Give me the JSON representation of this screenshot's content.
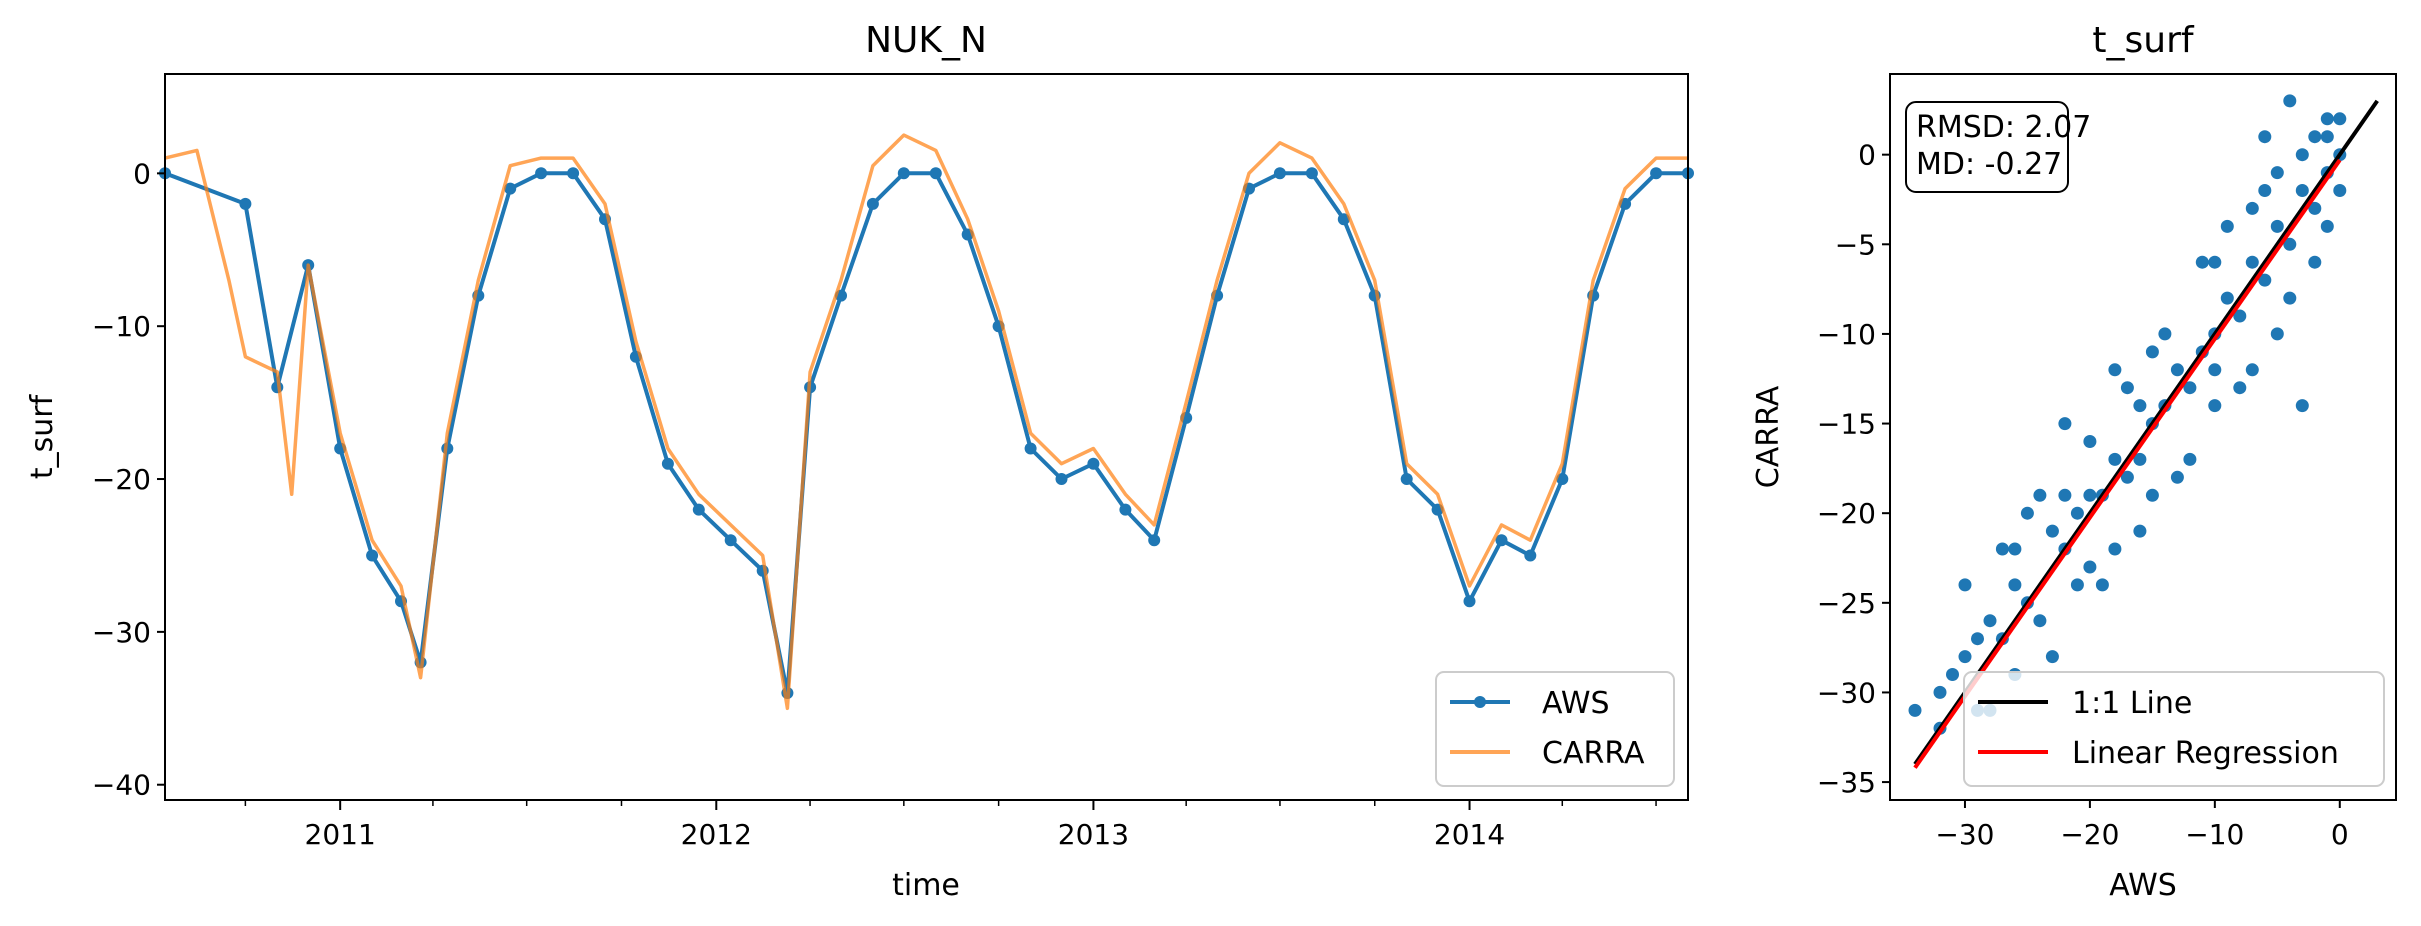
{
  "chart_data": [
    {
      "type": "line",
      "title": "NUK_N",
      "xlabel": "time",
      "ylabel": "t_surf",
      "x_ticks": [
        "2011",
        "2012",
        "2013",
        "2014"
      ],
      "x_range": [
        "2010-07-15",
        "2014-08-01"
      ],
      "ylim": [
        -41,
        6.5
      ],
      "y_ticks": [
        0,
        -10,
        -20,
        -30,
        -40
      ],
      "grid": false,
      "legend_position": "lower right",
      "series": [
        {
          "name": "AWS",
          "color": "#1f77b4",
          "marker": "circle",
          "points": [
            [
              "2010-07-15",
              0
            ],
            [
              "2010-10-01",
              -2
            ],
            [
              "2010-11-01",
              -14
            ],
            [
              "2010-12-01",
              -6
            ],
            [
              "2011-01-01",
              -18
            ],
            [
              "2011-02-01",
              -25
            ],
            [
              "2011-03-01",
              -28
            ],
            [
              "2011-03-20",
              -32
            ],
            [
              "2011-04-15",
              -18
            ],
            [
              "2011-05-15",
              -8
            ],
            [
              "2011-06-15",
              -1
            ],
            [
              "2011-07-15",
              0
            ],
            [
              "2011-08-15",
              0
            ],
            [
              "2011-09-15",
              -3
            ],
            [
              "2011-10-15",
              -12
            ],
            [
              "2011-11-15",
              -19
            ],
            [
              "2011-12-15",
              -22
            ],
            [
              "2012-01-15",
              -24
            ],
            [
              "2012-02-15",
              -26
            ],
            [
              "2012-03-10",
              -34
            ],
            [
              "2012-04-01",
              -14
            ],
            [
              "2012-05-01",
              -8
            ],
            [
              "2012-06-01",
              -2
            ],
            [
              "2012-07-01",
              0
            ],
            [
              "2012-08-01",
              0
            ],
            [
              "2012-09-01",
              -4
            ],
            [
              "2012-10-01",
              -10
            ],
            [
              "2012-11-01",
              -18
            ],
            [
              "2012-12-01",
              -20
            ],
            [
              "2013-01-01",
              -19
            ],
            [
              "2013-02-01",
              -22
            ],
            [
              "2013-03-01",
              -24
            ],
            [
              "2013-04-01",
              -16
            ],
            [
              "2013-05-01",
              -8
            ],
            [
              "2013-06-01",
              -1
            ],
            [
              "2013-07-01",
              0
            ],
            [
              "2013-08-01",
              0
            ],
            [
              "2013-09-01",
              -3
            ],
            [
              "2013-10-01",
              -8
            ],
            [
              "2013-11-01",
              -20
            ],
            [
              "2013-12-01",
              -22
            ],
            [
              "2014-01-01",
              -28
            ],
            [
              "2014-02-01",
              -24
            ],
            [
              "2014-03-01",
              -25
            ],
            [
              "2014-04-01",
              -20
            ],
            [
              "2014-05-01",
              -8
            ],
            [
              "2014-06-01",
              -2
            ],
            [
              "2014-07-01",
              0
            ],
            [
              "2014-08-01",
              0
            ]
          ]
        },
        {
          "name": "CARRA",
          "color": "#ff7f0e",
          "points": [
            [
              "2010-07-15",
              1
            ],
            [
              "2010-08-15",
              1.5
            ],
            [
              "2010-09-15",
              -7
            ],
            [
              "2010-10-01",
              -12
            ],
            [
              "2010-11-01",
              -13
            ],
            [
              "2010-11-15",
              -21
            ],
            [
              "2010-12-01",
              -6
            ],
            [
              "2011-01-01",
              -17
            ],
            [
              "2011-02-01",
              -24
            ],
            [
              "2011-03-01",
              -27
            ],
            [
              "2011-03-20",
              -33
            ],
            [
              "2011-04-15",
              -17
            ],
            [
              "2011-05-15",
              -7
            ],
            [
              "2011-06-15",
              0.5
            ],
            [
              "2011-07-15",
              1
            ],
            [
              "2011-08-15",
              1
            ],
            [
              "2011-09-15",
              -2
            ],
            [
              "2011-10-15",
              -11
            ],
            [
              "2011-11-15",
              -18
            ],
            [
              "2011-12-15",
              -21
            ],
            [
              "2012-01-15",
              -23
            ],
            [
              "2012-02-15",
              -25
            ],
            [
              "2012-03-10",
              -35
            ],
            [
              "2012-04-01",
              -13
            ],
            [
              "2012-05-01",
              -7
            ],
            [
              "2012-06-01",
              0.5
            ],
            [
              "2012-07-01",
              2.5
            ],
            [
              "2012-08-01",
              1.5
            ],
            [
              "2012-09-01",
              -3
            ],
            [
              "2012-10-01",
              -9
            ],
            [
              "2012-11-01",
              -17
            ],
            [
              "2012-12-01",
              -19
            ],
            [
              "2013-01-01",
              -18
            ],
            [
              "2013-02-01",
              -21
            ],
            [
              "2013-03-01",
              -23
            ],
            [
              "2013-04-01",
              -15
            ],
            [
              "2013-05-01",
              -7
            ],
            [
              "2013-06-01",
              0
            ],
            [
              "2013-07-01",
              2
            ],
            [
              "2013-08-01",
              1
            ],
            [
              "2013-09-01",
              -2
            ],
            [
              "2013-10-01",
              -7
            ],
            [
              "2013-11-01",
              -19
            ],
            [
              "2013-12-01",
              -21
            ],
            [
              "2014-01-01",
              -27
            ],
            [
              "2014-02-01",
              -23
            ],
            [
              "2014-03-01",
              -24
            ],
            [
              "2014-04-01",
              -19
            ],
            [
              "2014-05-01",
              -7
            ],
            [
              "2014-06-01",
              -1
            ],
            [
              "2014-07-01",
              1
            ],
            [
              "2014-08-01",
              1
            ]
          ]
        }
      ]
    },
    {
      "type": "scatter",
      "title": "t_surf",
      "xlabel": "AWS",
      "ylabel": "CARRA",
      "xlim": [
        -36,
        4.5
      ],
      "ylim": [
        -36,
        4.5
      ],
      "x_ticks": [
        -30,
        -20,
        -10,
        0
      ],
      "y_ticks": [
        0,
        -5,
        -10,
        -15,
        -20,
        -25,
        -30,
        -35
      ],
      "grid": false,
      "legend_position": "lower right",
      "annotation": [
        "RMSD: 2.07",
        "MD: -0.27"
      ],
      "points": [
        [
          -34,
          -31
        ],
        [
          -32,
          -32
        ],
        [
          -31,
          -29
        ],
        [
          -30,
          -28
        ],
        [
          -29,
          -27
        ],
        [
          -28,
          -26
        ],
        [
          -27,
          -27
        ],
        [
          -26,
          -22
        ],
        [
          -25,
          -25
        ],
        [
          -24,
          -26
        ],
        [
          -23,
          -21
        ],
        [
          -22,
          -22
        ],
        [
          -21,
          -20
        ],
        [
          -20,
          -19
        ],
        [
          -19,
          -19
        ],
        [
          -18,
          -17
        ],
        [
          -17,
          -18
        ],
        [
          -16,
          -14
        ],
        [
          -15,
          -15
        ],
        [
          -14,
          -14
        ],
        [
          -13,
          -12
        ],
        [
          -12,
          -13
        ],
        [
          -11,
          -11
        ],
        [
          -10,
          -10
        ],
        [
          -9,
          -8
        ],
        [
          -8,
          -9
        ],
        [
          -7,
          -6
        ],
        [
          -6,
          -7
        ],
        [
          -5,
          -4
        ],
        [
          -4,
          -5
        ],
        [
          -3,
          -2
        ],
        [
          -2,
          -3
        ],
        [
          -1,
          1
        ],
        [
          0,
          2
        ],
        [
          -25,
          -20
        ],
        [
          -20,
          -16
        ],
        [
          -15,
          -11
        ],
        [
          -10,
          -6
        ],
        [
          -5,
          -1
        ],
        [
          -26,
          -29
        ],
        [
          -20,
          -23
        ],
        [
          -15,
          -19
        ],
        [
          -10,
          -14
        ],
        [
          -5,
          -10
        ],
        [
          -4,
          3
        ],
        [
          -22,
          -15
        ],
        [
          -18,
          -12
        ],
        [
          -3,
          -14
        ],
        [
          -30,
          -24
        ],
        [
          -28,
          -31
        ],
        [
          -24,
          -19
        ],
        [
          -21,
          -24
        ],
        [
          -16,
          -21
        ],
        [
          -12,
          -17
        ],
        [
          -8,
          -13
        ],
        [
          -6,
          1
        ],
        [
          -11,
          -6
        ],
        [
          -14,
          -10
        ],
        [
          -19,
          -24
        ],
        [
          -23,
          -28
        ],
        [
          -27,
          -22
        ],
        [
          -2,
          1
        ],
        [
          -1,
          -1
        ],
        [
          0,
          0
        ],
        [
          -1,
          -4
        ],
        [
          -7,
          -12
        ],
        [
          -9,
          -4
        ],
        [
          -17,
          -13
        ],
        [
          -13,
          -18
        ],
        [
          -32,
          -30
        ],
        [
          -29,
          -31
        ],
        [
          -18,
          -22
        ],
        [
          -6,
          -2
        ],
        [
          -3,
          0
        ],
        [
          -4,
          -8
        ],
        [
          -26,
          -24
        ],
        [
          -22,
          -19
        ],
        [
          -16,
          -17
        ],
        [
          -10,
          -12
        ],
        [
          -7,
          -3
        ],
        [
          -2,
          -6
        ],
        [
          0,
          -2
        ],
        [
          -1,
          2
        ]
      ],
      "point_color": "#1f77b4",
      "lines": [
        {
          "name": "1:1 Line",
          "color": "#000000",
          "from": [
            -34,
            -34
          ],
          "to": [
            3,
            3
          ]
        },
        {
          "name": "Linear Regression",
          "color": "#ff0000",
          "from": [
            -34,
            -34.2
          ],
          "to": [
            0,
            -0.3
          ]
        }
      ]
    }
  ]
}
